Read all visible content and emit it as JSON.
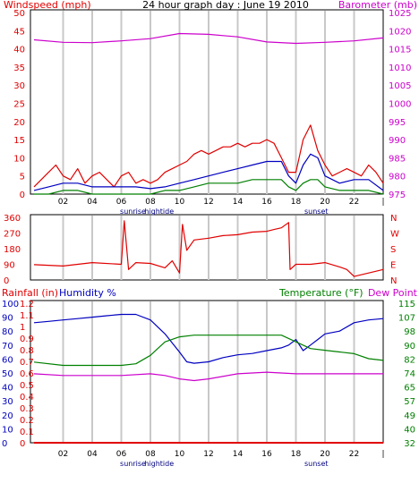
{
  "header": {
    "title": "24 hour graph day : June 19 2010",
    "left_label": "Windspeed (mph)",
    "right_label": "Barometer (mb)"
  },
  "colors": {
    "wind": "#e00000",
    "gust": "#e00000",
    "wind_avg": "#0000c0",
    "wind_low": "#008000",
    "baro": "#cc00cc",
    "dir": "#e00000",
    "humidity": "#0000c0",
    "temperature": "#008000",
    "dewpoint": "#cc00cc",
    "rain": "#e00000",
    "grid": "#c8c8c8"
  },
  "chart_data": [
    {
      "type": "line",
      "panel": "wind-baro",
      "x_ticks": [
        "02",
        "04",
        "06",
        "08",
        "10",
        "12",
        "14",
        "16",
        "18",
        "20",
        "22",
        "|"
      ],
      "annotations": [
        "sunrise",
        "hightide",
        "sunset"
      ],
      "y_left": {
        "label": "Windspeed (mph)",
        "ticks": [
          0,
          5,
          10,
          15,
          20,
          25,
          30,
          35,
          40,
          45,
          50
        ],
        "ylim": [
          0,
          50
        ]
      },
      "y_right": {
        "label": "Barometer (mb)",
        "ticks": [
          975,
          980,
          985,
          990,
          995,
          1000,
          1005,
          1010,
          1015,
          1020,
          1025
        ],
        "ylim": [
          975,
          1025
        ]
      },
      "series": [
        {
          "key": "gust",
          "axis": "left",
          "x": [
            0,
            0.5,
            1,
            1.5,
            2,
            2.5,
            3,
            3.5,
            4,
            4.5,
            5,
            5.5,
            6,
            6.5,
            7,
            7.5,
            8,
            8.5,
            9,
            9.5,
            10,
            10.5,
            11,
            11.5,
            12,
            12.5,
            13,
            13.5,
            14,
            14.5,
            15,
            15.5,
            16,
            16.5,
            17,
            17.5,
            18,
            18.5,
            19,
            19.5,
            20,
            20.5,
            21,
            21.5,
            22,
            22.5,
            23,
            23.5,
            24
          ],
          "values": [
            2,
            4,
            6,
            8,
            5,
            4,
            7,
            3,
            5,
            6,
            4,
            2,
            5,
            6,
            3,
            4,
            3,
            4,
            6,
            7,
            8,
            9,
            11,
            12,
            11,
            12,
            13,
            13,
            14,
            13,
            14,
            14,
            15,
            14,
            10,
            6,
            6,
            15,
            19,
            12,
            8,
            5,
            6,
            7,
            6,
            5,
            8,
            6,
            3
          ]
        },
        {
          "key": "wind_avg",
          "axis": "left",
          "x": [
            0,
            1,
            2,
            3,
            4,
            5,
            6,
            7,
            8,
            9,
            10,
            11,
            12,
            13,
            14,
            15,
            16,
            17,
            17.5,
            18,
            18.5,
            19,
            19.5,
            20,
            21,
            22,
            23,
            24
          ],
          "values": [
            1,
            2,
            3,
            3,
            2,
            2,
            2,
            2,
            1.5,
            2,
            3,
            4,
            5,
            6,
            7,
            8,
            9,
            9,
            5,
            3,
            8,
            11,
            10,
            5,
            3,
            4,
            4,
            1
          ]
        },
        {
          "key": "wind_low",
          "axis": "left",
          "x": [
            0,
            1,
            2,
            3,
            4,
            5,
            6,
            7,
            8,
            9,
            10,
            11,
            12,
            13,
            14,
            15,
            16,
            17,
            17.5,
            18,
            18.5,
            19,
            19.5,
            20,
            21,
            22,
            23,
            24
          ],
          "values": [
            0,
            0,
            1,
            1,
            0,
            0,
            0,
            0,
            0,
            1,
            1,
            2,
            3,
            3,
            3,
            4,
            4,
            4,
            2,
            1,
            3,
            4,
            4,
            2,
            1,
            1,
            1,
            0
          ]
        },
        {
          "key": "baro",
          "axis": "right",
          "x": [
            0,
            2,
            4,
            6,
            8,
            10,
            12,
            14,
            16,
            18,
            20,
            22,
            24
          ],
          "values": [
            1017.5,
            1016.8,
            1016.7,
            1017.2,
            1017.8,
            1019.2,
            1019.0,
            1018.3,
            1016.9,
            1016.5,
            1016.8,
            1017.2,
            1018.0
          ]
        }
      ]
    },
    {
      "type": "line",
      "panel": "wind-direction",
      "y_left": {
        "ticks": [
          0,
          90,
          180,
          270,
          360
        ],
        "ylim": [
          0,
          360
        ]
      },
      "y_right": {
        "ticks": [
          "N",
          "E",
          "S",
          "W",
          "N"
        ]
      },
      "series": [
        {
          "key": "dir",
          "axis": "left",
          "x": [
            0,
            2,
            4,
            6,
            6.2,
            6.5,
            7,
            8,
            9,
            9.5,
            10,
            10.2,
            10.5,
            11,
            12,
            13,
            14,
            15,
            16,
            16.5,
            17,
            17.5,
            17.6,
            18,
            19,
            20,
            21,
            21.5,
            22,
            23,
            24
          ],
          "values": [
            88,
            80,
            100,
            90,
            340,
            60,
            100,
            95,
            70,
            110,
            40,
            320,
            170,
            230,
            240,
            255,
            260,
            275,
            280,
            290,
            300,
            330,
            60,
            90,
            90,
            100,
            75,
            60,
            20,
            40,
            60
          ]
        }
      ]
    },
    {
      "type": "line",
      "panel": "humidity-temp",
      "y_left": {
        "label": "Humidity %",
        "ticks": [
          0,
          10,
          20,
          30,
          40,
          50,
          60,
          70,
          80,
          90,
          100
        ],
        "ylim": [
          0,
          100
        ]
      },
      "y_rain": {
        "label": "Rainfall (in)",
        "ticks": [
          "0",
          "0.1",
          "0.2",
          "0.3",
          "0.4",
          "0.5",
          "0.6",
          "0.7",
          "0.8",
          "0.9",
          "1",
          "1.1",
          "1.2"
        ]
      },
      "y_right": {
        "label": "Temperature (°F)",
        "label2": "Dew Point",
        "ticks": [
          32,
          40,
          49,
          57,
          65,
          74,
          82,
          90,
          98,
          107,
          115
        ],
        "ylim": [
          32,
          115
        ]
      },
      "series": [
        {
          "key": "humidity",
          "axis": "left",
          "x": [
            0,
            1,
            2,
            3,
            4,
            5,
            6,
            7,
            8,
            9,
            10,
            10.5,
            11,
            12,
            13,
            14,
            15,
            16,
            17,
            17.5,
            18,
            18.5,
            19,
            19.5,
            20,
            21,
            22,
            23,
            24
          ],
          "values": [
            86,
            87,
            88,
            89,
            90,
            91,
            92,
            92,
            88,
            78,
            65,
            58,
            57,
            58,
            61,
            63,
            64,
            66,
            68,
            70,
            74,
            66,
            70,
            74,
            78,
            80,
            86,
            88,
            89
          ]
        },
        {
          "key": "temperature",
          "axis": "right",
          "x": [
            0,
            2,
            4,
            6,
            7,
            8,
            9,
            10,
            11,
            12,
            14,
            16,
            17,
            18,
            19,
            20,
            21,
            22,
            23,
            24
          ],
          "values": [
            80,
            78,
            78,
            78,
            79,
            84,
            92,
            95,
            96,
            96,
            96,
            96,
            96,
            92,
            88,
            87,
            86,
            85,
            82,
            81
          ]
        },
        {
          "key": "dewpoint",
          "axis": "right",
          "x": [
            0,
            2,
            4,
            6,
            8,
            9,
            10,
            11,
            12,
            14,
            16,
            18,
            20,
            22,
            24
          ],
          "values": [
            73,
            72,
            72,
            72,
            73,
            72,
            70,
            69,
            70,
            73,
            74,
            73,
            73,
            73,
            73
          ]
        },
        {
          "key": "rain",
          "axis": "left",
          "x": [
            0,
            24
          ],
          "values": [
            0,
            0
          ]
        }
      ]
    }
  ],
  "bottom_panel_labels": {
    "rain_label": "Rainfall (in)",
    "humidity_label": "Humidity %",
    "temp_label": "Temperature (°F)",
    "dew_label": "Dew Point"
  }
}
